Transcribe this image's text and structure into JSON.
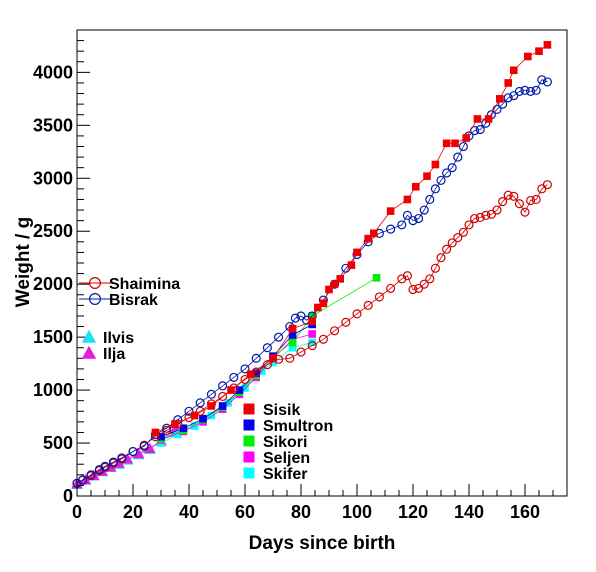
{
  "chart_data": {
    "type": "scatter",
    "xlabel": "Days since birth",
    "ylabel": "Weight / g",
    "xlim": [
      0,
      175
    ],
    "ylim": [
      0,
      4400
    ],
    "x_ticks": [
      0,
      20,
      40,
      60,
      80,
      100,
      120,
      140,
      160
    ],
    "y_ticks": [
      0,
      500,
      1000,
      1500,
      2000,
      2500,
      3000,
      3500,
      4000
    ],
    "grid": false,
    "legends": [
      {
        "placement": "middle-left",
        "entries": [
          "Shaimina",
          "Bisrak"
        ]
      },
      {
        "placement": "middle-left",
        "entries": [
          "Ilvis",
          "Ilja"
        ]
      },
      {
        "placement": "lower-middle",
        "entries": [
          "Sisik",
          "Smultron",
          "Sikori",
          "Seljen",
          "Skifer"
        ]
      }
    ],
    "series": [
      {
        "name": "Shaimina",
        "color": "#d00000",
        "marker": "open-circle",
        "line": true,
        "points": [
          [
            0,
            120
          ],
          [
            2,
            150
          ],
          [
            5,
            190
          ],
          [
            8,
            240
          ],
          [
            10,
            270
          ],
          [
            13,
            310
          ],
          [
            16,
            350
          ],
          [
            20,
            420
          ],
          [
            24,
            480
          ],
          [
            28,
            560
          ],
          [
            32,
            620
          ],
          [
            36,
            680
          ],
          [
            40,
            740
          ],
          [
            44,
            800
          ],
          [
            48,
            870
          ],
          [
            52,
            940
          ],
          [
            56,
            1020
          ],
          [
            60,
            1100
          ],
          [
            64,
            1170
          ],
          [
            68,
            1240
          ],
          [
            72,
            1290
          ],
          [
            76,
            1300
          ],
          [
            80,
            1360
          ],
          [
            84,
            1420
          ],
          [
            88,
            1480
          ],
          [
            92,
            1560
          ],
          [
            96,
            1640
          ],
          [
            100,
            1720
          ],
          [
            104,
            1800
          ],
          [
            108,
            1880
          ],
          [
            112,
            1960
          ],
          [
            116,
            2050
          ],
          [
            118,
            2080
          ],
          [
            120,
            1950
          ],
          [
            122,
            1960
          ],
          [
            124,
            2000
          ],
          [
            126,
            2050
          ],
          [
            128,
            2150
          ],
          [
            130,
            2250
          ],
          [
            132,
            2330
          ],
          [
            134,
            2390
          ],
          [
            136,
            2440
          ],
          [
            138,
            2490
          ],
          [
            140,
            2560
          ],
          [
            142,
            2620
          ],
          [
            144,
            2630
          ],
          [
            146,
            2650
          ],
          [
            148,
            2660
          ],
          [
            150,
            2700
          ],
          [
            152,
            2780
          ],
          [
            154,
            2840
          ],
          [
            156,
            2830
          ],
          [
            158,
            2760
          ],
          [
            160,
            2680
          ],
          [
            162,
            2790
          ],
          [
            164,
            2800
          ],
          [
            166,
            2900
          ],
          [
            168,
            2940
          ]
        ]
      },
      {
        "name": "Bisrak",
        "color": "#001aa8",
        "marker": "open-circle",
        "line": true,
        "points": [
          [
            0,
            120
          ],
          [
            2,
            150
          ],
          [
            5,
            200
          ],
          [
            8,
            250
          ],
          [
            10,
            280
          ],
          [
            13,
            320
          ],
          [
            16,
            360
          ],
          [
            20,
            420
          ],
          [
            24,
            470
          ],
          [
            28,
            580
          ],
          [
            32,
            640
          ],
          [
            36,
            720
          ],
          [
            40,
            800
          ],
          [
            44,
            880
          ],
          [
            48,
            960
          ],
          [
            52,
            1040
          ],
          [
            56,
            1120
          ],
          [
            60,
            1200
          ],
          [
            64,
            1300
          ],
          [
            68,
            1400
          ],
          [
            72,
            1500
          ],
          [
            76,
            1600
          ],
          [
            78,
            1680
          ],
          [
            80,
            1700
          ],
          [
            82,
            1660
          ],
          [
            84,
            1700
          ],
          [
            88,
            1850
          ],
          [
            92,
            2000
          ],
          [
            96,
            2150
          ],
          [
            100,
            2280
          ],
          [
            104,
            2400
          ],
          [
            108,
            2480
          ],
          [
            112,
            2520
          ],
          [
            116,
            2560
          ],
          [
            118,
            2650
          ],
          [
            120,
            2600
          ],
          [
            122,
            2620
          ],
          [
            124,
            2700
          ],
          [
            126,
            2800
          ],
          [
            128,
            2900
          ],
          [
            130,
            2980
          ],
          [
            132,
            3050
          ],
          [
            134,
            3100
          ],
          [
            136,
            3200
          ],
          [
            138,
            3300
          ],
          [
            140,
            3400
          ],
          [
            142,
            3450
          ],
          [
            144,
            3460
          ],
          [
            146,
            3520
          ],
          [
            148,
            3600
          ],
          [
            150,
            3650
          ],
          [
            152,
            3700
          ],
          [
            154,
            3760
          ],
          [
            156,
            3780
          ],
          [
            158,
            3820
          ],
          [
            160,
            3830
          ],
          [
            162,
            3820
          ],
          [
            164,
            3830
          ],
          [
            166,
            3930
          ],
          [
            168,
            3910
          ]
        ]
      },
      {
        "name": "Ilvis",
        "color": "#1ee0f0",
        "marker": "filled-triangle",
        "line": true,
        "points": [
          [
            0,
            110
          ],
          [
            3,
            150
          ],
          [
            6,
            190
          ],
          [
            9,
            230
          ],
          [
            12,
            270
          ],
          [
            15,
            300
          ],
          [
            18,
            340
          ],
          [
            22,
            390
          ],
          [
            26,
            440
          ],
          [
            30,
            520
          ],
          [
            35,
            600
          ]
        ]
      },
      {
        "name": "Ilja",
        "color": "#e020e0",
        "marker": "filled-triangle",
        "line": true,
        "points": [
          [
            0,
            115
          ],
          [
            3,
            155
          ],
          [
            6,
            195
          ],
          [
            9,
            235
          ],
          [
            12,
            275
          ],
          [
            15,
            310
          ],
          [
            18,
            350
          ],
          [
            22,
            400
          ],
          [
            26,
            450
          ],
          [
            30,
            520
          ],
          [
            35,
            630
          ]
        ]
      },
      {
        "name": "Sisik",
        "color": "#ee0000",
        "marker": "filled-square",
        "line": true,
        "points": [
          [
            28,
            600
          ],
          [
            35,
            680
          ],
          [
            42,
            760
          ],
          [
            48,
            850
          ],
          [
            55,
            1000
          ],
          [
            62,
            1150
          ],
          [
            70,
            1300
          ],
          [
            77,
            1580
          ],
          [
            84,
            1650
          ],
          [
            86,
            1780
          ],
          [
            88,
            1820
          ],
          [
            90,
            1950
          ],
          [
            92,
            2000
          ],
          [
            94,
            2050
          ],
          [
            98,
            2180
          ],
          [
            100,
            2300
          ],
          [
            104,
            2430
          ],
          [
            106,
            2480
          ],
          [
            112,
            2690
          ],
          [
            118,
            2800
          ],
          [
            121,
            2920
          ],
          [
            125,
            3020
          ],
          [
            128,
            3130
          ],
          [
            132,
            3330
          ],
          [
            135,
            3330
          ],
          [
            139,
            3380
          ],
          [
            143,
            3560
          ],
          [
            147,
            3560
          ],
          [
            151,
            3750
          ],
          [
            154,
            3900
          ],
          [
            156,
            4020
          ],
          [
            161,
            4150
          ],
          [
            165,
            4200
          ],
          [
            168,
            4260
          ]
        ]
      },
      {
        "name": "Smultron",
        "color": "#0000ee",
        "marker": "filled-square",
        "line": true,
        "points": [
          [
            30,
            560
          ],
          [
            38,
            640
          ],
          [
            45,
            730
          ],
          [
            52,
            850
          ],
          [
            58,
            1000
          ],
          [
            64,
            1160
          ],
          [
            70,
            1320
          ],
          [
            77,
            1520
          ],
          [
            84,
            1620
          ]
        ]
      },
      {
        "name": "Sikori",
        "color": "#00ee00",
        "marker": "filled-square",
        "line": true,
        "points": [
          [
            30,
            540
          ],
          [
            38,
            620
          ],
          [
            45,
            720
          ],
          [
            52,
            840
          ],
          [
            58,
            980
          ],
          [
            64,
            1140
          ],
          [
            70,
            1320
          ],
          [
            77,
            1450
          ],
          [
            84,
            1700
          ],
          [
            107,
            2060
          ]
        ]
      },
      {
        "name": "Seljen",
        "color": "#ff00ff",
        "marker": "filled-square",
        "line": true,
        "points": [
          [
            30,
            530
          ],
          [
            38,
            610
          ],
          [
            45,
            700
          ],
          [
            52,
            820
          ],
          [
            58,
            960
          ],
          [
            64,
            1120
          ],
          [
            70,
            1300
          ],
          [
            77,
            1480
          ],
          [
            84,
            1530
          ]
        ]
      },
      {
        "name": "Skifer",
        "color": "#00ffff",
        "marker": "filled-square",
        "line": true,
        "points": [
          [
            30,
            500
          ],
          [
            36,
            580
          ],
          [
            42,
            660
          ],
          [
            48,
            760
          ],
          [
            54,
            880
          ],
          [
            60,
            1020
          ],
          [
            66,
            1180
          ],
          [
            70,
            1260
          ],
          [
            77,
            1400
          ],
          [
            84,
            1450
          ]
        ]
      }
    ]
  }
}
